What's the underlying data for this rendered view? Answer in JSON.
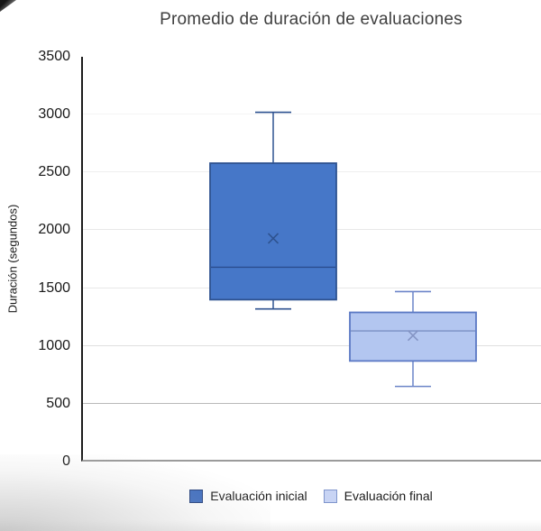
{
  "chart_data": {
    "type": "boxplot",
    "title": "Promedio de duración de evaluaciones",
    "ylabel": "Duración (segundos)",
    "xlabel": "",
    "ylim": [
      0,
      3500
    ],
    "ytick_step": 500,
    "ytick_labels": [
      "3500",
      "3000",
      "2500",
      "2000",
      "1500",
      "1000",
      "500",
      "0"
    ],
    "ytick_values": [
      3500,
      3000,
      2500,
      2000,
      1500,
      1000,
      500,
      0
    ],
    "grid": "horizontal",
    "legend_position": "bottom",
    "series": [
      {
        "name": "Evaluación inicial",
        "min": 1320,
        "q1": 1400,
        "median": 1680,
        "q3": 2580,
        "max": 3020,
        "mean": 1930,
        "fill": "#4677C8",
        "border": "#2E5290",
        "whisker": "#2E5290",
        "median_color": "#2B4D8F",
        "mean_color": "#2E5290"
      },
      {
        "name": "Evaluación final",
        "min": 650,
        "q1": 870,
        "median": 1130,
        "q3": 1290,
        "max": 1470,
        "mean": 1090,
        "fill": "#B3C6F0",
        "border": "#5B79C4",
        "whisker": "#6B84C8",
        "median_color": "#7B90C4",
        "mean_color": "#8494C4"
      }
    ],
    "legend": [
      {
        "label": "Evaluación inicial",
        "swatch_fill": "#3E6DC0",
        "swatch_border": "#24407C"
      },
      {
        "label": "Evaluación final",
        "swatch_fill": "#C8D4F4",
        "swatch_border": "#8096CC"
      }
    ]
  },
  "colors": {
    "axis_y": "#1C1C1C",
    "axis_x": "#9B9B9B",
    "title_text": "#3F3F3F",
    "tick_text": "#191919"
  }
}
